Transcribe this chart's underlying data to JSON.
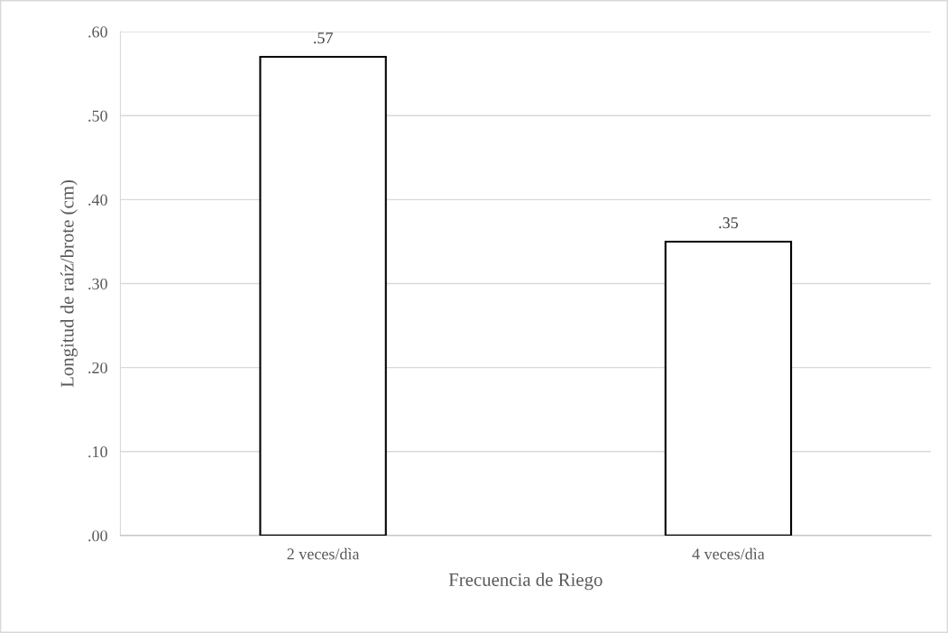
{
  "chart_data": {
    "type": "bar",
    "xlabel": "Frecuencia de Riego",
    "ylabel": "Longitud de raíz/brote (cm)",
    "categories": [
      "2 veces/dìa",
      "4 veces/dìa"
    ],
    "values": [
      0.57,
      0.35
    ],
    "value_labels": [
      ".57",
      ".35"
    ],
    "color": "#ffffff",
    "ylim": [
      0,
      0.6
    ],
    "yticks": [
      {
        "value": 0,
        "label": ".00"
      },
      {
        "value": 0.1,
        "label": ".10"
      },
      {
        "value": 0.2,
        "label": ".20"
      },
      {
        "value": 0.3,
        "label": ".30"
      },
      {
        "value": 0.4,
        "label": ".40"
      },
      {
        "value": 0.5,
        "label": ".50"
      },
      {
        "value": 0.6,
        "label": ".60"
      }
    ],
    "grid": "y"
  }
}
